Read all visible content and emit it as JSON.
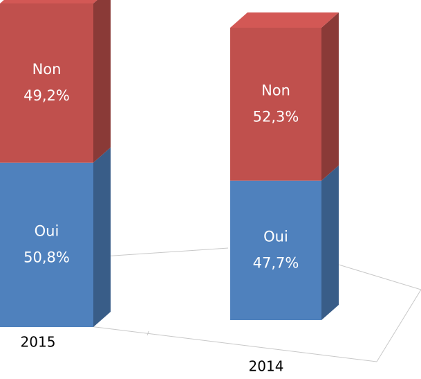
{
  "chart_data": {
    "type": "bar",
    "stacked": true,
    "categories": [
      "2015",
      "2014"
    ],
    "series": [
      {
        "name": "Oui",
        "color": "#4f81bd",
        "values": [
          50.8,
          47.7
        ],
        "value_labels": [
          "50,8%",
          "47,7%"
        ]
      },
      {
        "name": "Non",
        "color": "#c0504d",
        "values": [
          49.2,
          52.3
        ],
        "value_labels": [
          "49,2%",
          "52,3%"
        ]
      }
    ]
  }
}
